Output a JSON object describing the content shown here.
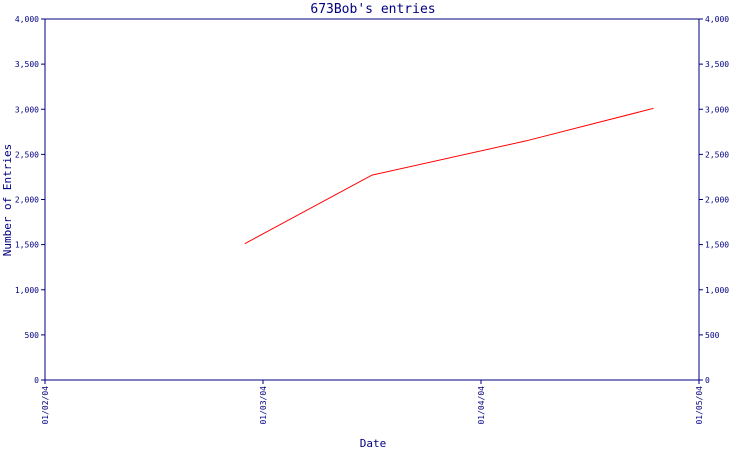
{
  "chart_data": {
    "type": "line",
    "title": "673Bob's entries",
    "xlabel": "Date",
    "ylabel": "Number of Entries",
    "x_ticks": [
      "01/02/04",
      "01/03/04",
      "01/04/04",
      "01/05/04"
    ],
    "xlim": [
      "2004-01-02",
      "2004-01-05"
    ],
    "ylim": [
      0,
      4000
    ],
    "y_ticks": [
      0,
      500,
      1000,
      1500,
      2000,
      2500,
      3000,
      3500,
      4000
    ],
    "y_tick_labels": [
      "0",
      "500",
      "1,000",
      "1,500",
      "2,000",
      "2,500",
      "3,000",
      "3,500",
      "4,000"
    ],
    "right_axis_mirrors_left": true,
    "grid": false,
    "series": [
      {
        "color": "#ff0000",
        "x": [
          "2004-01-02T22:00",
          "2004-01-03T12:00",
          "2004-01-04T05:00",
          "2004-01-04T19:00"
        ],
        "y": [
          1510,
          2270,
          2650,
          3010
        ]
      }
    ]
  }
}
